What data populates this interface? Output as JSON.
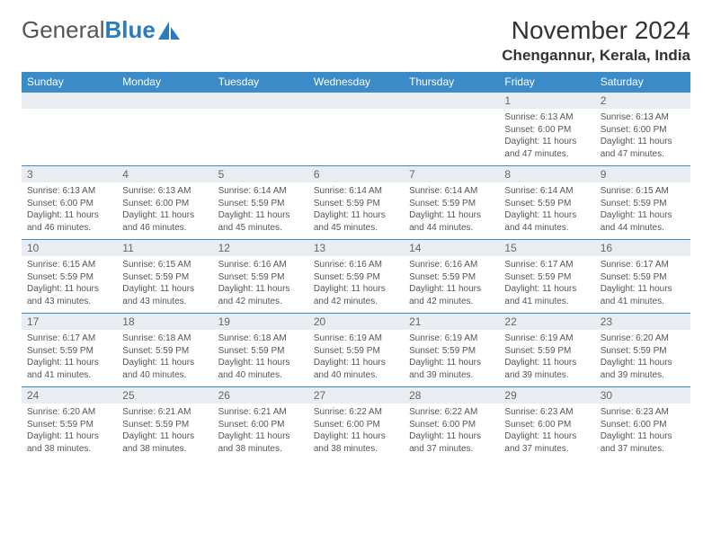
{
  "logo": {
    "text_general": "General",
    "text_blue": "Blue"
  },
  "header": {
    "month_title": "November 2024",
    "location": "Chengannur, Kerala, India"
  },
  "colors": {
    "header_bg": "#3b8bc9",
    "daynum_bg": "#e9edf1",
    "row_border": "#3b8bc9",
    "logo_blue": "#2b7bbf"
  },
  "day_headers": [
    "Sunday",
    "Monday",
    "Tuesday",
    "Wednesday",
    "Thursday",
    "Friday",
    "Saturday"
  ],
  "labels": {
    "sunrise_prefix": "Sunrise: ",
    "sunset_prefix": "Sunset: ",
    "daylight_prefix": "Daylight: ",
    "and_word": " and ",
    "minutes_suffix": " minutes."
  },
  "weeks": [
    [
      {
        "empty": true
      },
      {
        "empty": true
      },
      {
        "empty": true
      },
      {
        "empty": true
      },
      {
        "empty": true
      },
      {
        "day": "1",
        "sunrise": "6:13 AM",
        "sunset": "6:00 PM",
        "daylight_h": "11 hours",
        "daylight_m": "47"
      },
      {
        "day": "2",
        "sunrise": "6:13 AM",
        "sunset": "6:00 PM",
        "daylight_h": "11 hours",
        "daylight_m": "47"
      }
    ],
    [
      {
        "day": "3",
        "sunrise": "6:13 AM",
        "sunset": "6:00 PM",
        "daylight_h": "11 hours",
        "daylight_m": "46"
      },
      {
        "day": "4",
        "sunrise": "6:13 AM",
        "sunset": "6:00 PM",
        "daylight_h": "11 hours",
        "daylight_m": "46"
      },
      {
        "day": "5",
        "sunrise": "6:14 AM",
        "sunset": "5:59 PM",
        "daylight_h": "11 hours",
        "daylight_m": "45"
      },
      {
        "day": "6",
        "sunrise": "6:14 AM",
        "sunset": "5:59 PM",
        "daylight_h": "11 hours",
        "daylight_m": "45"
      },
      {
        "day": "7",
        "sunrise": "6:14 AM",
        "sunset": "5:59 PM",
        "daylight_h": "11 hours",
        "daylight_m": "44"
      },
      {
        "day": "8",
        "sunrise": "6:14 AM",
        "sunset": "5:59 PM",
        "daylight_h": "11 hours",
        "daylight_m": "44"
      },
      {
        "day": "9",
        "sunrise": "6:15 AM",
        "sunset": "5:59 PM",
        "daylight_h": "11 hours",
        "daylight_m": "44"
      }
    ],
    [
      {
        "day": "10",
        "sunrise": "6:15 AM",
        "sunset": "5:59 PM",
        "daylight_h": "11 hours",
        "daylight_m": "43"
      },
      {
        "day": "11",
        "sunrise": "6:15 AM",
        "sunset": "5:59 PM",
        "daylight_h": "11 hours",
        "daylight_m": "43"
      },
      {
        "day": "12",
        "sunrise": "6:16 AM",
        "sunset": "5:59 PM",
        "daylight_h": "11 hours",
        "daylight_m": "42"
      },
      {
        "day": "13",
        "sunrise": "6:16 AM",
        "sunset": "5:59 PM",
        "daylight_h": "11 hours",
        "daylight_m": "42"
      },
      {
        "day": "14",
        "sunrise": "6:16 AM",
        "sunset": "5:59 PM",
        "daylight_h": "11 hours",
        "daylight_m": "42"
      },
      {
        "day": "15",
        "sunrise": "6:17 AM",
        "sunset": "5:59 PM",
        "daylight_h": "11 hours",
        "daylight_m": "41"
      },
      {
        "day": "16",
        "sunrise": "6:17 AM",
        "sunset": "5:59 PM",
        "daylight_h": "11 hours",
        "daylight_m": "41"
      }
    ],
    [
      {
        "day": "17",
        "sunrise": "6:17 AM",
        "sunset": "5:59 PM",
        "daylight_h": "11 hours",
        "daylight_m": "41"
      },
      {
        "day": "18",
        "sunrise": "6:18 AM",
        "sunset": "5:59 PM",
        "daylight_h": "11 hours",
        "daylight_m": "40"
      },
      {
        "day": "19",
        "sunrise": "6:18 AM",
        "sunset": "5:59 PM",
        "daylight_h": "11 hours",
        "daylight_m": "40"
      },
      {
        "day": "20",
        "sunrise": "6:19 AM",
        "sunset": "5:59 PM",
        "daylight_h": "11 hours",
        "daylight_m": "40"
      },
      {
        "day": "21",
        "sunrise": "6:19 AM",
        "sunset": "5:59 PM",
        "daylight_h": "11 hours",
        "daylight_m": "39"
      },
      {
        "day": "22",
        "sunrise": "6:19 AM",
        "sunset": "5:59 PM",
        "daylight_h": "11 hours",
        "daylight_m": "39"
      },
      {
        "day": "23",
        "sunrise": "6:20 AM",
        "sunset": "5:59 PM",
        "daylight_h": "11 hours",
        "daylight_m": "39"
      }
    ],
    [
      {
        "day": "24",
        "sunrise": "6:20 AM",
        "sunset": "5:59 PM",
        "daylight_h": "11 hours",
        "daylight_m": "38"
      },
      {
        "day": "25",
        "sunrise": "6:21 AM",
        "sunset": "5:59 PM",
        "daylight_h": "11 hours",
        "daylight_m": "38"
      },
      {
        "day": "26",
        "sunrise": "6:21 AM",
        "sunset": "6:00 PM",
        "daylight_h": "11 hours",
        "daylight_m": "38"
      },
      {
        "day": "27",
        "sunrise": "6:22 AM",
        "sunset": "6:00 PM",
        "daylight_h": "11 hours",
        "daylight_m": "38"
      },
      {
        "day": "28",
        "sunrise": "6:22 AM",
        "sunset": "6:00 PM",
        "daylight_h": "11 hours",
        "daylight_m": "37"
      },
      {
        "day": "29",
        "sunrise": "6:23 AM",
        "sunset": "6:00 PM",
        "daylight_h": "11 hours",
        "daylight_m": "37"
      },
      {
        "day": "30",
        "sunrise": "6:23 AM",
        "sunset": "6:00 PM",
        "daylight_h": "11 hours",
        "daylight_m": "37"
      }
    ]
  ]
}
